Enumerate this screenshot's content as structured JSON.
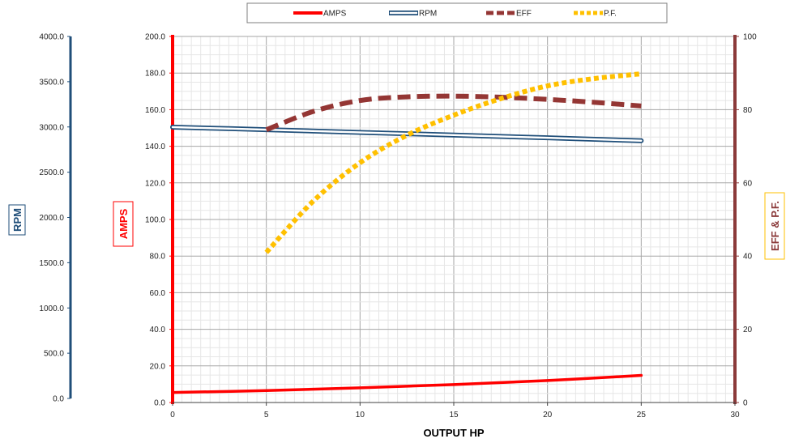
{
  "chart_data": {
    "type": "line",
    "x": [
      0,
      2.5,
      5,
      7.5,
      10,
      12.5,
      15,
      17.5,
      20,
      22.5,
      25
    ],
    "xlabel": "OUTPUT HP",
    "xlim": [
      0,
      30
    ],
    "xticks": [
      "0",
      "5",
      "10",
      "15",
      "20",
      "25",
      "30"
    ],
    "grid": true,
    "legend_position": "top",
    "axes": {
      "amps": {
        "label": "AMPS",
        "range": [
          0,
          200
        ],
        "ticks": [
          "0.0",
          "20.0",
          "40.0",
          "60.0",
          "80.0",
          "100.0",
          "120.0",
          "140.0",
          "160.0",
          "180.0",
          "200.0"
        ],
        "color": "#ff0000"
      },
      "rpm": {
        "label": "RPM",
        "range": [
          0,
          4000
        ],
        "ticks": [
          "0.0",
          "500.0",
          "1000.0",
          "1500.0",
          "2000.0",
          "2500.0",
          "3000.0",
          "3500.0",
          "4000.0"
        ],
        "color": "#1f4e79"
      },
      "eff_pf": {
        "label": "EFF & P.F.",
        "range": [
          0,
          100
        ],
        "ticks": [
          "0",
          "20",
          "40",
          "60",
          "80",
          "100"
        ],
        "color": "#8b3a3a"
      }
    },
    "series": [
      {
        "name": "AMPS",
        "axis": "amps",
        "color": "#ff0000",
        "style": "solid",
        "x": [
          0,
          5,
          10,
          15,
          20,
          25
        ],
        "values": [
          5.5,
          6.5,
          8,
          9.8,
          12,
          14.8
        ]
      },
      {
        "name": "RPM",
        "axis": "rpm",
        "color": "#1f4e79",
        "style": "double",
        "x": [
          0,
          5,
          10,
          15,
          20,
          25
        ],
        "values": [
          2998,
          2970,
          2940,
          2910,
          2880,
          2848
        ]
      },
      {
        "name": "EFF",
        "axis": "eff_pf",
        "color": "#943634",
        "style": "dash",
        "x": [
          5,
          7.5,
          10,
          12.5,
          15,
          17.5,
          20,
          22.5,
          25
        ],
        "values": [
          74.5,
          79.5,
          82.5,
          83.5,
          83.7,
          83.4,
          82.8,
          82,
          81
        ]
      },
      {
        "name": "P.F.",
        "axis": "eff_pf",
        "color": "#ffc000",
        "style": "dot",
        "x": [
          5,
          7.5,
          10,
          12.5,
          15,
          17.5,
          20,
          22.5,
          25
        ],
        "values": [
          41,
          55,
          65.5,
          73,
          78.5,
          83,
          86.5,
          88.5,
          89.8
        ]
      }
    ]
  }
}
